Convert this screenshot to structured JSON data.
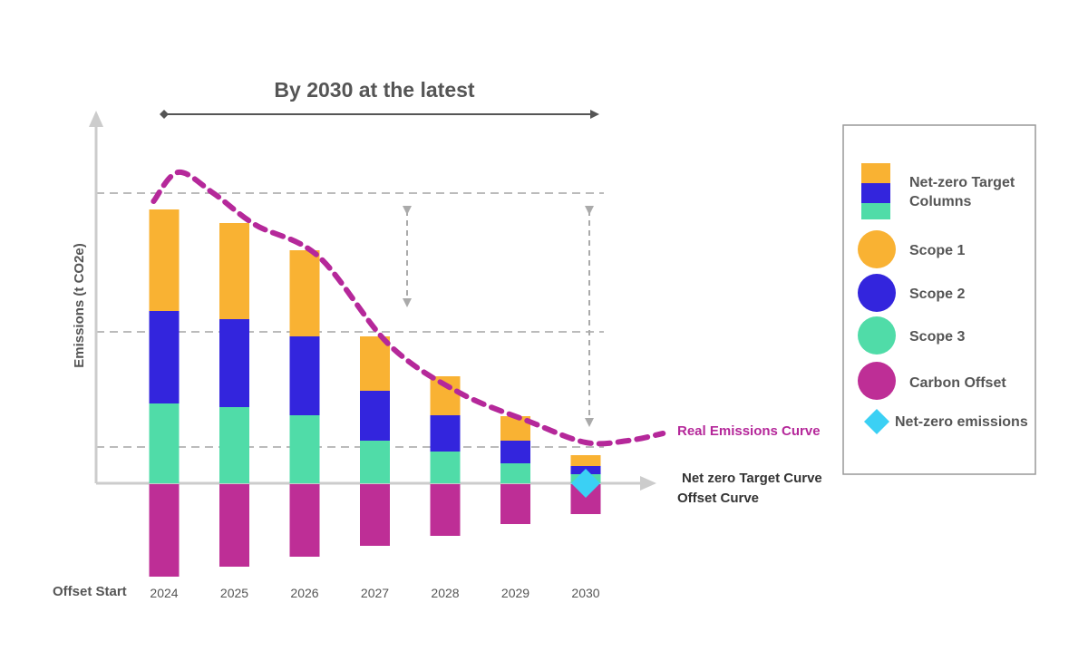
{
  "chart_data": {
    "type": "bar",
    "title": "By 2030 at the latest",
    "ylabel": "Emissions  (t CO2e)",
    "categories": [
      "2024",
      "2025",
      "2026",
      "2027",
      "2028",
      "2029",
      "2030"
    ],
    "series": [
      {
        "name": "Scope 3",
        "color": "#50DCA8",
        "values": [
          88,
          84,
          75,
          47,
          35,
          22,
          10
        ]
      },
      {
        "name": "Scope 2",
        "color": "#3325DD",
        "values": [
          102,
          97,
          87,
          55,
          40,
          25,
          9
        ]
      },
      {
        "name": "Scope 1",
        "color": "#F9B233",
        "values": [
          112,
          106,
          95,
          60,
          43,
          27,
          12
        ]
      },
      {
        "name": "Carbon Offset",
        "color": "#BE2E96",
        "values": [
          -102,
          -91,
          -80,
          -68,
          -57,
          -44,
          -33
        ]
      }
    ],
    "real_emissions_curve": {
      "name": "Real Emissions Curve",
      "color": "#B5289A",
      "x": [
        2023.85,
        2024.2,
        2024.7,
        2025.3,
        2026.2,
        2027.2,
        2028.2,
        2029.2,
        2030.0,
        2030.6,
        2031.1
      ],
      "y": [
        311,
        343,
        320,
        285,
        250,
        153,
        100,
        68,
        45,
        47,
        55
      ]
    },
    "net_zero_point": {
      "name": "Net-zero emissions",
      "category": "2030",
      "value": 0,
      "color": "#3BD0F4"
    },
    "reference_lines": [
      320,
      167,
      40
    ],
    "ylim": [
      -110,
      410
    ],
    "axis_notes": [
      "Net zero Target Curve",
      "Offset Curve"
    ],
    "x_start_label": "Offset Start",
    "grid": false
  },
  "legend": {
    "items": [
      {
        "label": "Net-zero Target Columns",
        "label_lines": [
          "Net-zero Target",
          "Columns"
        ],
        "colors": [
          "#F9B233",
          "#3325DD",
          "#50DCA8"
        ],
        "shape": "stacked-square"
      },
      {
        "label": "Scope 1",
        "color": "#F9B233",
        "shape": "circle"
      },
      {
        "label": "Scope 2",
        "color": "#3325DD",
        "shape": "circle"
      },
      {
        "label": "Scope 3",
        "color": "#50DCA8",
        "shape": "circle"
      },
      {
        "label": "Carbon Offset",
        "color": "#BE2E96",
        "shape": "circle"
      },
      {
        "label": "Net-zero emissions",
        "color": "#3BD0F4",
        "shape": "diamond"
      }
    ]
  }
}
